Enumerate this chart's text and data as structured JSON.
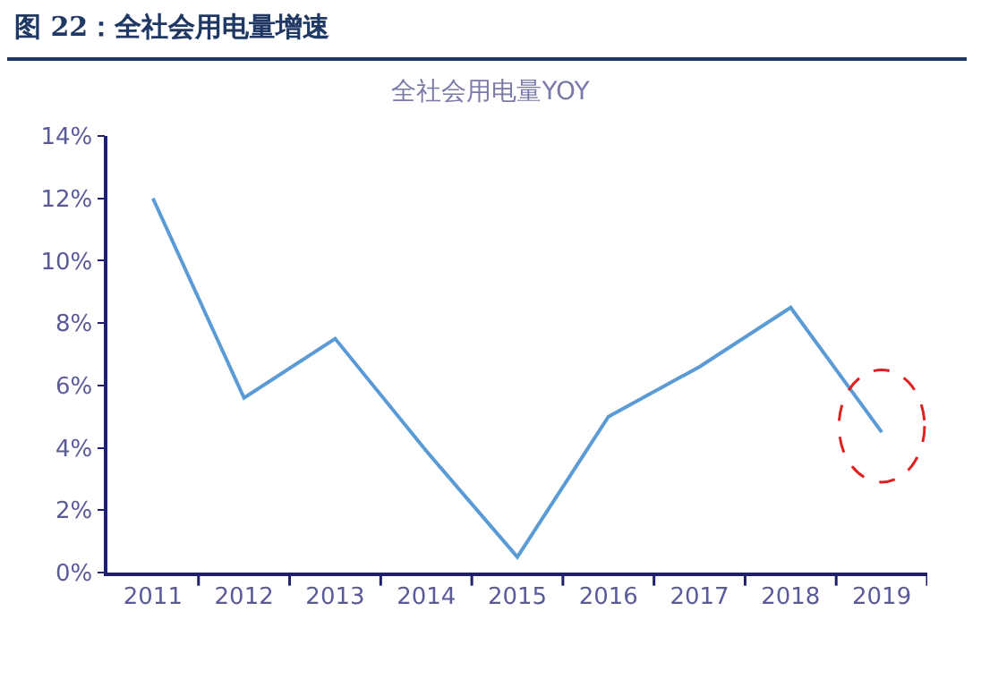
{
  "chart_data": {
    "type": "line",
    "title": "图 22：全社会用电量增速",
    "subtitle": "全社会用电量YOY",
    "categories": [
      "2011",
      "2012",
      "2013",
      "2014",
      "2015",
      "2016",
      "2017",
      "2018",
      "2019"
    ],
    "series": [
      {
        "color": "#5b9bd5",
        "values": [
          12.0,
          5.6,
          7.5,
          3.9,
          0.5,
          5.0,
          6.6,
          8.5,
          4.5
        ]
      }
    ],
    "ylim": [
      0,
      14
    ],
    "yticks": [
      {
        "value": 0,
        "label": "0%"
      },
      {
        "value": 2,
        "label": "2%"
      },
      {
        "value": 4,
        "label": "4%"
      },
      {
        "value": 6,
        "label": "6%"
      },
      {
        "value": 8,
        "label": "8%"
      },
      {
        "value": 10,
        "label": "10%"
      },
      {
        "value": 12,
        "label": "12%"
      },
      {
        "value": 14,
        "label": "14%"
      }
    ],
    "grid": false,
    "marker": "none",
    "line_style": "solid"
  }
}
